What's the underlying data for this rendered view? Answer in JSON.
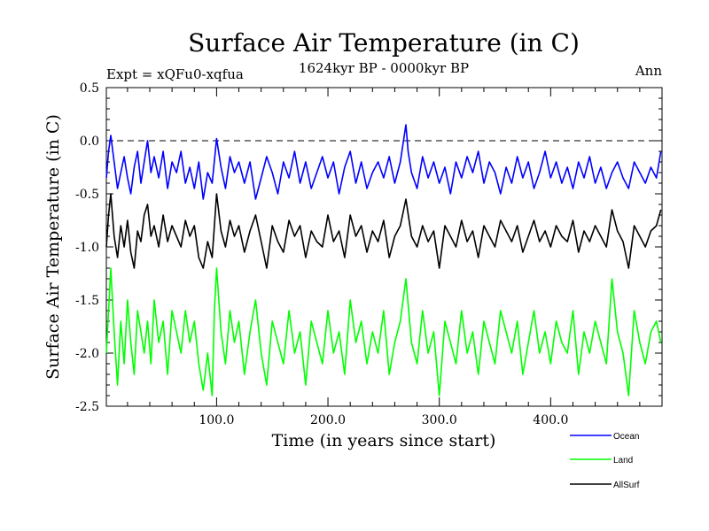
{
  "chart_data": {
    "type": "line",
    "title": "Surface Air Temperature (in C)",
    "subtitle": "1624kyr BP - 0000kyr BP",
    "left_note": "Expt = xQFu0-xqfua",
    "right_note": "Ann",
    "xlabel": "Time (in years since start)",
    "ylabel": "Surface Air Temperature (in C)",
    "xlim": [
      1,
      500
    ],
    "ylim": [
      -2.5,
      0.5
    ],
    "x_ticks": [
      100,
      200,
      300,
      400
    ],
    "x_tick_labels": [
      "100.0",
      "200.0",
      "300.0",
      "400.0"
    ],
    "y_ticks": [
      -2.5,
      -2.0,
      -1.5,
      -1.0,
      -0.5,
      0.0,
      0.5
    ],
    "y_tick_labels": [
      "-2.5",
      "-2.0",
      "-1.5",
      "-1.0",
      "-0.5",
      "0.0",
      "0.5"
    ],
    "reference_line": 0.0,
    "series": [
      {
        "name": "Ocean",
        "color": "#0000ff",
        "x": [
          1,
          3,
          5,
          8,
          11,
          14,
          17,
          20,
          23,
          26,
          29,
          32,
          35,
          38,
          41,
          44,
          48,
          52,
          56,
          60,
          64,
          68,
          72,
          76,
          80,
          84,
          88,
          92,
          96,
          100,
          104,
          108,
          112,
          116,
          120,
          125,
          130,
          135,
          140,
          145,
          150,
          155,
          160,
          165,
          170,
          175,
          180,
          185,
          190,
          195,
          200,
          205,
          210,
          215,
          220,
          225,
          230,
          235,
          240,
          245,
          250,
          255,
          260,
          265,
          270,
          272,
          275,
          280,
          285,
          290,
          295,
          300,
          305,
          310,
          315,
          320,
          325,
          330,
          335,
          340,
          345,
          350,
          355,
          360,
          365,
          370,
          375,
          380,
          385,
          390,
          395,
          400,
          405,
          410,
          415,
          420,
          425,
          430,
          435,
          440,
          445,
          450,
          455,
          460,
          465,
          470,
          475,
          480,
          485,
          490,
          495,
          499
        ],
        "y": [
          -0.35,
          -0.1,
          0.05,
          -0.2,
          -0.45,
          -0.3,
          -0.15,
          -0.35,
          -0.5,
          -0.25,
          -0.1,
          -0.4,
          -0.2,
          0.0,
          -0.3,
          -0.15,
          -0.35,
          -0.1,
          -0.45,
          -0.2,
          -0.3,
          -0.1,
          -0.4,
          -0.25,
          -0.45,
          -0.2,
          -0.55,
          -0.3,
          -0.4,
          0.02,
          -0.25,
          -0.45,
          -0.15,
          -0.3,
          -0.2,
          -0.4,
          -0.2,
          -0.55,
          -0.35,
          -0.15,
          -0.3,
          -0.5,
          -0.2,
          -0.35,
          -0.1,
          -0.4,
          -0.2,
          -0.45,
          -0.3,
          -0.15,
          -0.35,
          -0.2,
          -0.5,
          -0.25,
          -0.1,
          -0.4,
          -0.2,
          -0.45,
          -0.3,
          -0.2,
          -0.35,
          -0.15,
          -0.4,
          -0.2,
          0.15,
          -0.1,
          -0.3,
          -0.45,
          -0.15,
          -0.35,
          -0.2,
          -0.4,
          -0.25,
          -0.5,
          -0.2,
          -0.35,
          -0.15,
          -0.3,
          -0.1,
          -0.4,
          -0.2,
          -0.3,
          -0.5,
          -0.25,
          -0.4,
          -0.15,
          -0.35,
          -0.2,
          -0.45,
          -0.3,
          -0.1,
          -0.35,
          -0.2,
          -0.4,
          -0.25,
          -0.45,
          -0.2,
          -0.35,
          -0.15,
          -0.4,
          -0.25,
          -0.45,
          -0.3,
          -0.2,
          -0.35,
          -0.45,
          -0.2,
          -0.3,
          -0.4,
          -0.25,
          -0.35,
          -0.1
        ]
      },
      {
        "name": "Land",
        "color": "#00ff00",
        "x": [
          1,
          3,
          5,
          8,
          11,
          14,
          17,
          20,
          23,
          26,
          29,
          32,
          35,
          38,
          41,
          44,
          48,
          52,
          56,
          60,
          64,
          68,
          72,
          76,
          80,
          84,
          88,
          92,
          96,
          98,
          100,
          104,
          108,
          112,
          116,
          120,
          125,
          130,
          135,
          140,
          145,
          150,
          155,
          160,
          165,
          170,
          175,
          180,
          185,
          190,
          195,
          200,
          205,
          210,
          215,
          220,
          225,
          230,
          235,
          240,
          245,
          250,
          255,
          260,
          265,
          270,
          275,
          280,
          285,
          290,
          295,
          300,
          305,
          310,
          315,
          320,
          325,
          330,
          335,
          340,
          345,
          350,
          355,
          360,
          365,
          370,
          375,
          380,
          385,
          390,
          395,
          400,
          405,
          410,
          415,
          420,
          425,
          430,
          435,
          440,
          445,
          450,
          455,
          460,
          465,
          470,
          475,
          480,
          485,
          490,
          495,
          499
        ],
        "y": [
          -2.0,
          -1.6,
          -1.2,
          -1.8,
          -2.3,
          -1.7,
          -2.1,
          -1.5,
          -1.9,
          -2.2,
          -1.6,
          -1.8,
          -2.0,
          -1.7,
          -2.1,
          -1.5,
          -1.9,
          -1.7,
          -2.2,
          -1.6,
          -1.8,
          -2.0,
          -1.6,
          -1.9,
          -1.7,
          -2.1,
          -2.35,
          -2.0,
          -2.4,
          -1.6,
          -1.2,
          -1.8,
          -2.1,
          -1.6,
          -1.9,
          -1.7,
          -2.2,
          -1.8,
          -1.5,
          -2.0,
          -2.3,
          -1.7,
          -1.9,
          -2.1,
          -1.6,
          -2.0,
          -1.8,
          -2.3,
          -1.7,
          -1.9,
          -2.1,
          -1.6,
          -2.0,
          -1.8,
          -2.2,
          -1.5,
          -1.9,
          -1.7,
          -2.1,
          -1.8,
          -2.0,
          -1.6,
          -2.2,
          -1.9,
          -1.7,
          -1.3,
          -1.9,
          -2.1,
          -1.6,
          -2.0,
          -1.8,
          -2.4,
          -1.7,
          -1.9,
          -2.1,
          -1.6,
          -2.0,
          -1.8,
          -2.2,
          -1.7,
          -1.9,
          -2.1,
          -1.6,
          -1.8,
          -2.0,
          -1.7,
          -2.2,
          -1.9,
          -1.6,
          -2.0,
          -1.8,
          -2.1,
          -1.7,
          -1.9,
          -2.0,
          -1.6,
          -2.2,
          -1.8,
          -2.0,
          -1.7,
          -1.9,
          -2.1,
          -1.3,
          -1.8,
          -2.0,
          -2.4,
          -1.6,
          -1.9,
          -2.1,
          -1.8,
          -1.7,
          -1.9
        ]
      },
      {
        "name": "AllSurf",
        "color": "#000000",
        "x": [
          1,
          3,
          5,
          8,
          11,
          14,
          17,
          20,
          23,
          26,
          29,
          32,
          35,
          38,
          41,
          44,
          48,
          52,
          56,
          60,
          64,
          68,
          72,
          76,
          80,
          84,
          88,
          92,
          96,
          98,
          100,
          104,
          108,
          112,
          116,
          120,
          125,
          130,
          135,
          140,
          145,
          150,
          155,
          160,
          165,
          170,
          175,
          180,
          185,
          190,
          195,
          200,
          205,
          210,
          215,
          220,
          225,
          230,
          235,
          240,
          245,
          250,
          255,
          260,
          265,
          270,
          275,
          280,
          285,
          290,
          295,
          300,
          305,
          310,
          315,
          320,
          325,
          330,
          335,
          340,
          345,
          350,
          355,
          360,
          365,
          370,
          375,
          380,
          385,
          390,
          395,
          400,
          405,
          410,
          415,
          420,
          425,
          430,
          435,
          440,
          445,
          450,
          455,
          460,
          465,
          470,
          475,
          480,
          485,
          490,
          495,
          499
        ],
        "y": [
          -1.0,
          -0.7,
          -0.5,
          -0.9,
          -1.1,
          -0.8,
          -1.0,
          -0.75,
          -1.05,
          -1.2,
          -0.85,
          -0.95,
          -0.7,
          -0.6,
          -0.9,
          -0.8,
          -1.0,
          -0.7,
          -0.95,
          -0.8,
          -0.9,
          -1.0,
          -0.75,
          -0.9,
          -0.8,
          -1.1,
          -1.2,
          -0.95,
          -1.1,
          -0.8,
          -0.5,
          -0.85,
          -1.0,
          -0.75,
          -0.9,
          -0.8,
          -1.05,
          -0.85,
          -0.7,
          -0.95,
          -1.2,
          -0.8,
          -0.95,
          -1.05,
          -0.75,
          -0.9,
          -0.8,
          -1.1,
          -0.85,
          -0.95,
          -1.0,
          -0.7,
          -0.95,
          -0.85,
          -1.1,
          -0.7,
          -0.9,
          -0.8,
          -1.05,
          -0.85,
          -0.95,
          -0.75,
          -1.1,
          -0.9,
          -0.8,
          -0.55,
          -0.9,
          -1.0,
          -0.8,
          -0.95,
          -0.85,
          -1.2,
          -0.8,
          -0.9,
          -1.0,
          -0.75,
          -0.95,
          -0.85,
          -1.1,
          -0.8,
          -0.9,
          -1.0,
          -0.75,
          -0.85,
          -0.95,
          -0.8,
          -1.05,
          -0.9,
          -0.75,
          -0.95,
          -0.85,
          -1.0,
          -0.8,
          -0.9,
          -0.95,
          -0.75,
          -1.05,
          -0.85,
          -0.95,
          -0.8,
          -0.9,
          -1.0,
          -0.65,
          -0.85,
          -0.95,
          -1.2,
          -0.8,
          -0.9,
          -1.0,
          -0.85,
          -0.8,
          -0.65
        ]
      }
    ],
    "legend": [
      "Ocean",
      "Land",
      "AllSurf"
    ],
    "legend_position": "bottom-right"
  }
}
